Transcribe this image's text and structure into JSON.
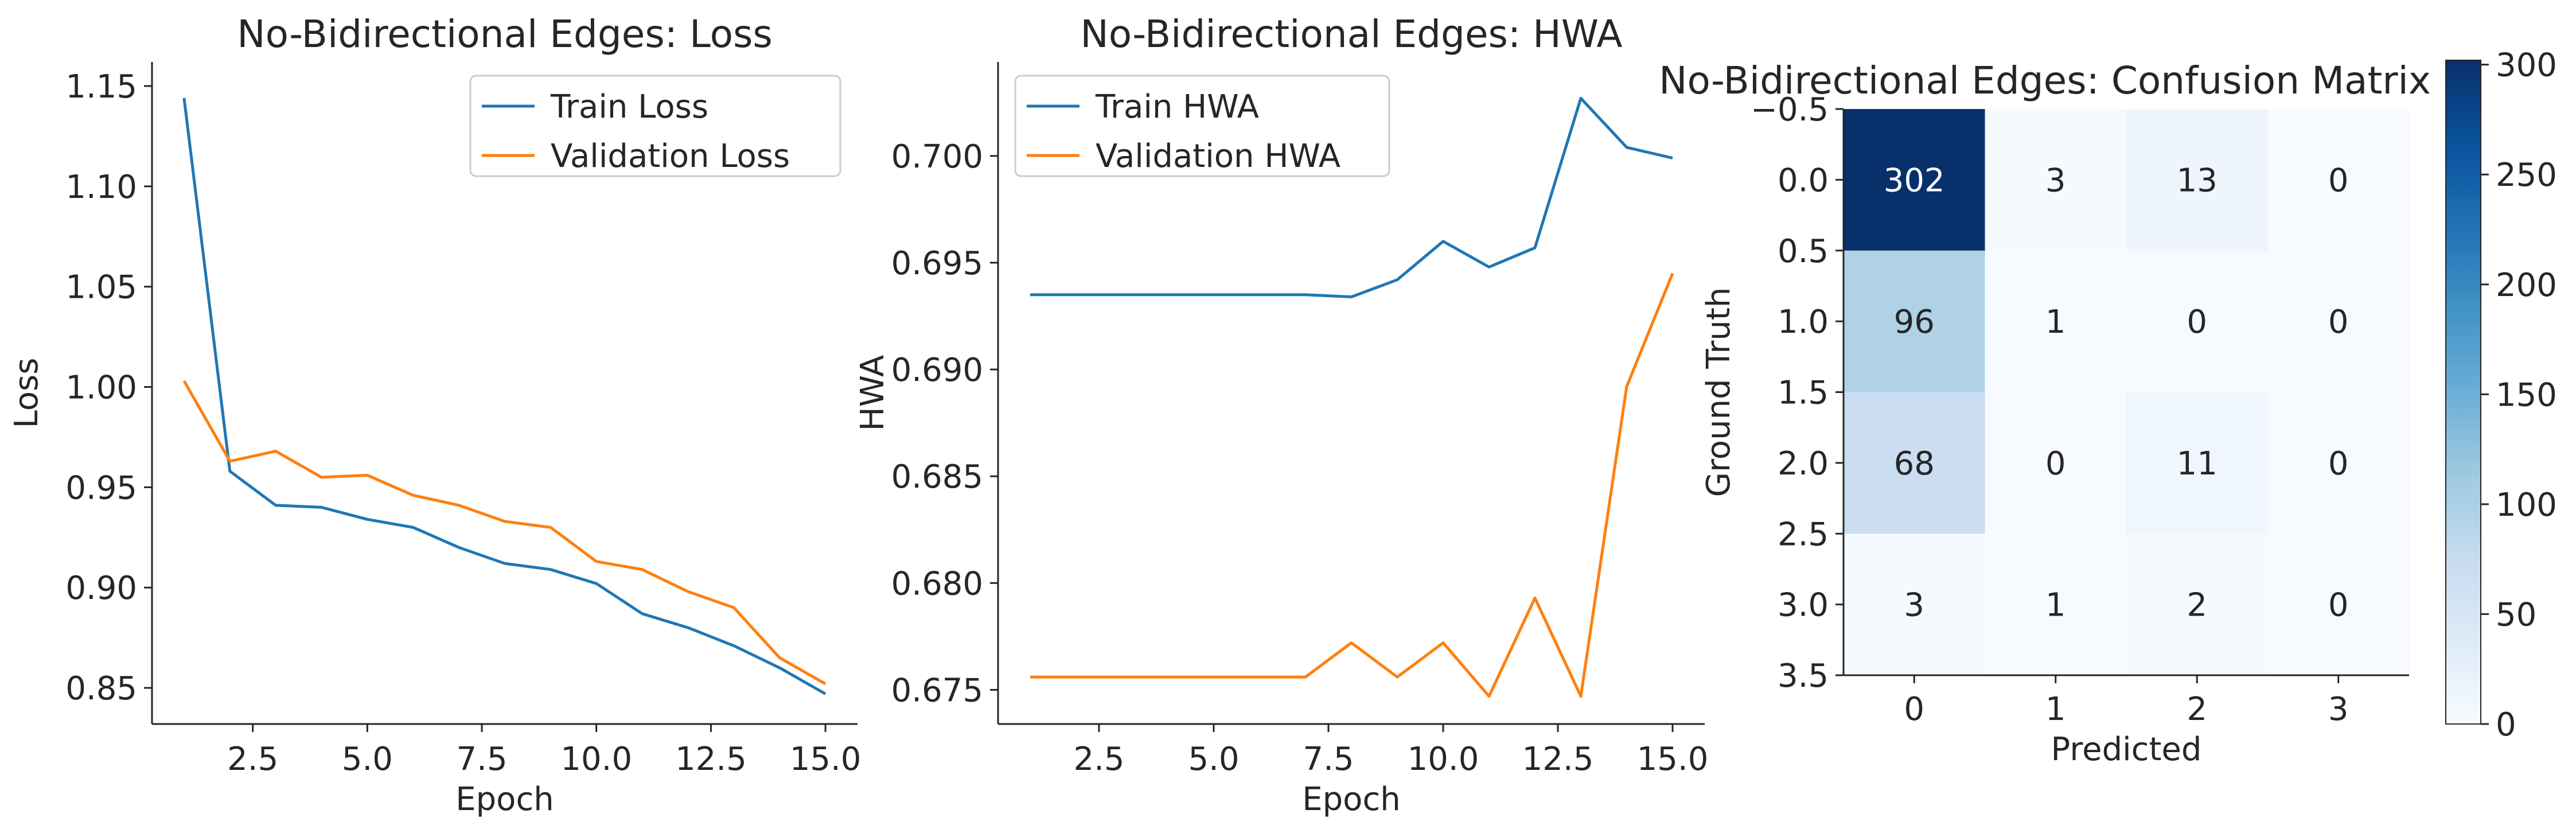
{
  "chart_data": [
    {
      "type": "line",
      "title": "No-Bidirectional Edges: Loss",
      "xlabel": "Epoch",
      "ylabel": "Loss",
      "xlim": [
        0.3,
        15.7
      ],
      "ylim": [
        0.832,
        1.162
      ],
      "xticks": [
        2.5,
        5.0,
        7.5,
        10.0,
        12.5,
        15.0
      ],
      "xtick_labels": [
        "2.5",
        "5.0",
        "7.5",
        "10.0",
        "12.5",
        "15.0"
      ],
      "yticks": [
        0.85,
        0.9,
        0.95,
        1.0,
        1.05,
        1.1,
        1.15
      ],
      "ytick_labels": [
        "0.85",
        "0.90",
        "0.95",
        "1.00",
        "1.05",
        "1.10",
        "1.15"
      ],
      "legend_position": "top-right",
      "grid": false,
      "x": [
        1,
        2,
        3,
        4,
        5,
        6,
        7,
        8,
        9,
        10,
        11,
        12,
        13,
        14,
        15
      ],
      "series": [
        {
          "name": "Train Loss",
          "color": "#1f77b4",
          "values": [
            1.144,
            0.958,
            0.941,
            0.94,
            0.934,
            0.93,
            0.92,
            0.912,
            0.909,
            0.902,
            0.887,
            0.88,
            0.871,
            0.86,
            0.847
          ]
        },
        {
          "name": "Validation Loss",
          "color": "#ff7f0e",
          "values": [
            1.003,
            0.963,
            0.968,
            0.955,
            0.956,
            0.946,
            0.941,
            0.933,
            0.93,
            0.913,
            0.909,
            0.898,
            0.89,
            0.865,
            0.852
          ]
        }
      ]
    },
    {
      "type": "line",
      "title": "No-Bidirectional Edges: HWA",
      "xlabel": "Epoch",
      "ylabel": "HWA",
      "xlim": [
        0.3,
        15.7
      ],
      "ylim": [
        0.6734,
        0.7044
      ],
      "xticks": [
        2.5,
        5.0,
        7.5,
        10.0,
        12.5,
        15.0
      ],
      "xtick_labels": [
        "2.5",
        "5.0",
        "7.5",
        "10.0",
        "12.5",
        "15.0"
      ],
      "yticks": [
        0.675,
        0.68,
        0.685,
        0.69,
        0.695,
        0.7
      ],
      "ytick_labels": [
        "0.675",
        "0.680",
        "0.685",
        "0.690",
        "0.695",
        "0.700"
      ],
      "legend_position": "top-left",
      "grid": false,
      "x": [
        1,
        2,
        3,
        4,
        5,
        6,
        7,
        8,
        9,
        10,
        11,
        12,
        13,
        14,
        15
      ],
      "series": [
        {
          "name": "Train HWA",
          "color": "#1f77b4",
          "values": [
            0.6935,
            0.6935,
            0.6935,
            0.6935,
            0.6935,
            0.6935,
            0.6935,
            0.6934,
            0.6942,
            0.696,
            0.6948,
            0.6957,
            0.7027,
            0.7004,
            0.6999
          ]
        },
        {
          "name": "Validation HWA",
          "color": "#ff7f0e",
          "values": [
            0.6756,
            0.6756,
            0.6756,
            0.6756,
            0.6756,
            0.6756,
            0.6756,
            0.6772,
            0.6756,
            0.6772,
            0.6747,
            0.6793,
            0.6747,
            0.6892,
            0.6945
          ]
        }
      ]
    },
    {
      "type": "heatmap",
      "title": "No-Bidirectional Edges: Confusion Matrix",
      "xlabel": "Predicted",
      "ylabel": "Ground Truth",
      "colormap": "Blues",
      "vmin": 0,
      "vmax": 302,
      "xticks": [
        0,
        1,
        2,
        3
      ],
      "xtick_labels": [
        "0",
        "1",
        "2",
        "3"
      ],
      "yticks": [
        -0.5,
        0.0,
        0.5,
        1.0,
        1.5,
        2.0,
        2.5,
        3.0,
        3.5
      ],
      "ytick_labels": [
        "−0.5",
        "0.0",
        "0.5",
        "1.0",
        "1.5",
        "2.0",
        "2.5",
        "3.0",
        "3.5"
      ],
      "colorbar_ticks": [
        0,
        50,
        100,
        150,
        200,
        250,
        300
      ],
      "colorbar_tick_labels": [
        "0",
        "50",
        "100",
        "150",
        "200",
        "250",
        "300"
      ],
      "matrix": [
        [
          302,
          3,
          13,
          0
        ],
        [
          96,
          1,
          0,
          0
        ],
        [
          68,
          0,
          11,
          0
        ],
        [
          3,
          1,
          2,
          0
        ]
      ]
    }
  ]
}
